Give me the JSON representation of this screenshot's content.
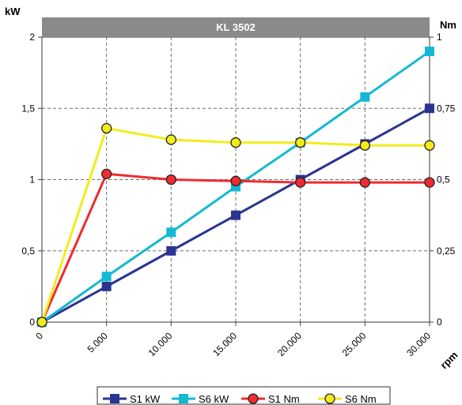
{
  "chart_data": {
    "type": "line",
    "title": "KL 3502",
    "xlabel": "rpm",
    "ylabel_left": "kW",
    "ylabel_right": "Nm",
    "x": [
      0,
      5000,
      10000,
      15000,
      20000,
      25000,
      30000
    ],
    "x_tick_labels": [
      "0",
      "5.000",
      "10.000",
      "15.000",
      "20.000",
      "25.000",
      "30.000"
    ],
    "xlim": [
      0,
      30000
    ],
    "ylim_left": [
      0,
      2
    ],
    "ylim_right": [
      0,
      1
    ],
    "y_left_tick_labels": [
      "0",
      "0,5",
      "1",
      "1,5",
      "2"
    ],
    "y_right_tick_labels": [
      "0",
      "0,25",
      "0,5",
      "0,75",
      "1"
    ],
    "grid": true,
    "legend_position": "bottom",
    "series": [
      {
        "name": "S1 kW",
        "axis": "left",
        "color": "#2a3591",
        "marker": "square",
        "values": [
          0,
          0.25,
          0.5,
          0.75,
          1.0,
          1.25,
          1.5
        ]
      },
      {
        "name": "S6 kW",
        "axis": "left",
        "color": "#14b8d2",
        "marker": "square",
        "values": [
          0,
          0.32,
          0.63,
          0.95,
          1.26,
          1.58,
          1.9
        ]
      },
      {
        "name": "S1 Nm",
        "axis": "right",
        "color": "#ee2b32",
        "marker": "circle",
        "values": [
          0,
          0.52,
          0.5,
          0.495,
          0.49,
          0.49,
          0.49
        ]
      },
      {
        "name": "S6 Nm",
        "axis": "right",
        "color": "#f3ec1c",
        "marker": "circle",
        "values": [
          0,
          0.68,
          0.64,
          0.63,
          0.63,
          0.62,
          0.62
        ]
      }
    ]
  }
}
